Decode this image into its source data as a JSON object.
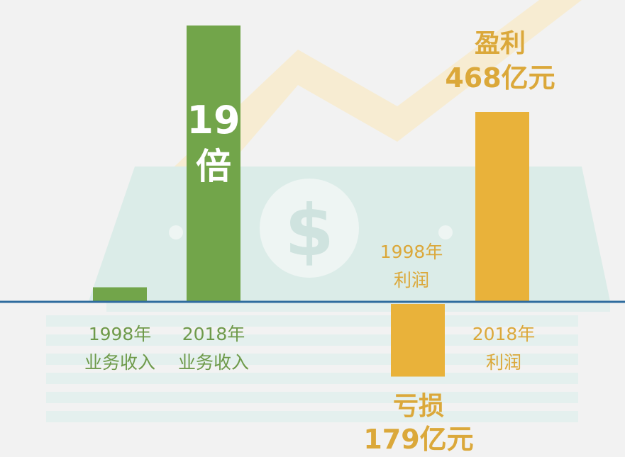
{
  "colors": {
    "revenue": "#72a54a",
    "profit": "#e9b23a",
    "baseline": "#2f6c9e",
    "background": "#f2f2f2"
  },
  "background_icons": [
    "dollar-bill-icon",
    "rising-arrow-icon"
  ],
  "chart_data": [
    {
      "type": "bar",
      "categories": [
        "1998年 业务收入",
        "2018年 业务收入"
      ],
      "category_lines": [
        [
          "1998年",
          "业务收入"
        ],
        [
          "2018年",
          "业务收入"
        ]
      ],
      "values": [
        1,
        19
      ],
      "annotation": {
        "line1": "19",
        "line2": "倍"
      },
      "color": "#72a54a"
    },
    {
      "type": "bar",
      "categories": [
        "1998年 利润",
        "2018年 利润"
      ],
      "category_lines": [
        [
          "1998年",
          "利润"
        ],
        [
          "2018年",
          "利润"
        ]
      ],
      "values": [
        -179,
        468
      ],
      "unit": "亿元",
      "annotations": [
        {
          "line1": "亏损",
          "line2": "179亿元"
        },
        {
          "line1": "盈利",
          "line2": "468亿元"
        }
      ],
      "color": "#e9b23a"
    }
  ]
}
